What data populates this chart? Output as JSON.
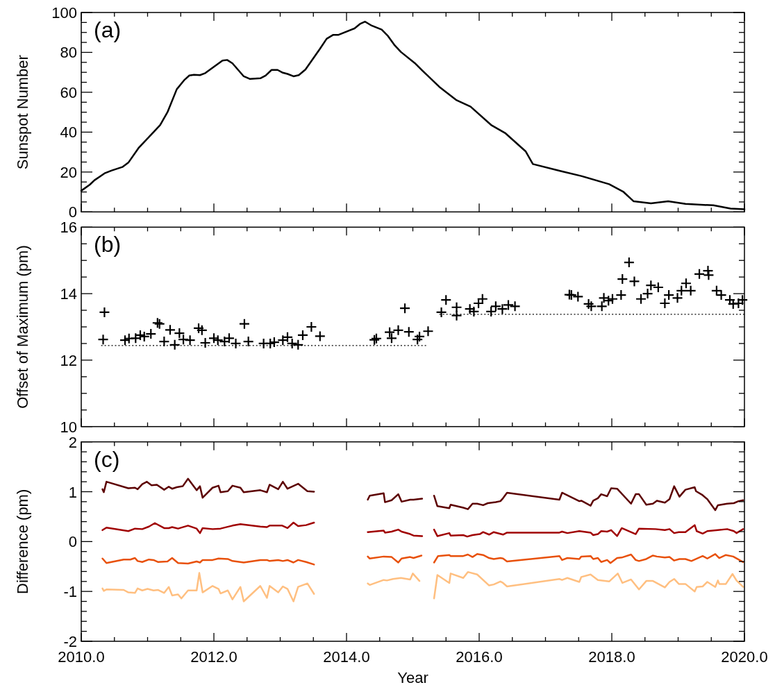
{
  "chart_data": [
    {
      "type": "line",
      "ylabel": "Sunspot Number",
      "annotations": [
        "(a)"
      ],
      "tick_labels": "y",
      "xlim": [
        2010,
        2020
      ],
      "ylim": [
        0,
        100
      ],
      "xticks": [
        {
          "value": 2010
        },
        {
          "value": 2010.5,
          "label": null
        },
        {
          "value": 2011,
          "label": null
        },
        {
          "value": 2011.5,
          "label": null
        },
        {
          "value": 2012
        },
        {
          "value": 2012.5,
          "label": null
        },
        {
          "value": 2013,
          "label": null
        },
        {
          "value": 2013.5,
          "label": null
        },
        {
          "value": 2014
        },
        {
          "value": 2014.5,
          "label": null
        },
        {
          "value": 2015,
          "label": null
        },
        {
          "value": 2015.5,
          "label": null
        },
        {
          "value": 2016
        },
        {
          "value": 2016.5,
          "label": null
        },
        {
          "value": 2017,
          "label": null
        },
        {
          "value": 2017.5,
          "label": null
        },
        {
          "value": 2018
        },
        {
          "value": 2018.5,
          "label": null
        },
        {
          "value": 2019,
          "label": null
        },
        {
          "value": 2019.5,
          "label": null
        },
        {
          "value": 2020
        }
      ],
      "yticks": [
        0,
        {
          "value": 5,
          "label": null
        },
        {
          "value": 10,
          "label": null
        },
        {
          "value": 15,
          "label": null
        },
        20,
        {
          "value": 25,
          "label": null
        },
        {
          "value": 30,
          "label": null
        },
        {
          "value": 35,
          "label": null
        },
        40,
        {
          "value": 45,
          "label": null
        },
        {
          "value": 50,
          "label": null
        },
        {
          "value": 55,
          "label": null
        },
        60,
        {
          "value": 65,
          "label": null
        },
        {
          "value": 70,
          "label": null
        },
        {
          "value": 75,
          "label": null
        },
        80,
        {
          "value": 85,
          "label": null
        },
        {
          "value": 90,
          "label": null
        },
        {
          "value": 95,
          "label": null
        },
        100
      ],
      "series": [
        {
          "color": "#000000",
          "x": [
            2010.0,
            2010.13,
            2010.2,
            2010.36,
            2010.46,
            2010.62,
            2010.71,
            2010.87,
            2011.09,
            2011.19,
            2011.3,
            2011.44,
            2011.55,
            2011.63,
            2011.7,
            2011.79,
            2011.87,
            2012.13,
            2012.2,
            2012.28,
            2012.45,
            2012.54,
            2012.7,
            2012.78,
            2012.87,
            2012.96,
            2013.04,
            2013.11,
            2013.2,
            2013.28,
            2013.38,
            2013.6,
            2013.7,
            2013.8,
            2013.88,
            2014.12,
            2014.21,
            2014.28,
            2014.38,
            2014.53,
            2014.62,
            2014.72,
            2014.82,
            2015.03,
            2015.14,
            2015.4,
            2015.66,
            2015.87,
            2016.18,
            2016.39,
            2016.7,
            2016.81,
            2017.23,
            2017.54,
            2017.96,
            2018.17,
            2018.33,
            2018.59,
            2018.85,
            2019.11,
            2019.53,
            2019.79,
            2020.0
          ],
          "values": [
            10.6,
            13.7,
            15.9,
            19.5,
            20.8,
            22.5,
            24.7,
            32.3,
            40,
            43.6,
            50,
            61.5,
            66,
            68.4,
            68.8,
            68.6,
            69.6,
            75.9,
            76.2,
            74.5,
            68,
            66.7,
            67,
            68.4,
            71.2,
            71.2,
            69.8,
            69.2,
            68,
            68.6,
            71.4,
            81.8,
            86.8,
            88.8,
            88.8,
            92,
            94.4,
            95.4,
            93.4,
            91.4,
            88.4,
            83.8,
            80.2,
            74.6,
            71,
            62.7,
            56,
            52.8,
            43.6,
            39.6,
            30.4,
            24,
            20.5,
            18,
            13.9,
            10.2,
            5.3,
            4.3,
            5.3,
            4,
            3.3,
            1.7,
            1.3
          ]
        }
      ]
    },
    {
      "type": "scatter",
      "ylabel": "Offset of Maximum (pm)",
      "annotations": [
        "(b)"
      ],
      "tick_labels": "y",
      "xlim": [
        2010,
        2020
      ],
      "ylim": [
        10,
        16
      ],
      "xticks": [
        {
          "value": 2010
        },
        {
          "value": 2010.5,
          "label": null
        },
        {
          "value": 2011,
          "label": null
        },
        {
          "value": 2011.5,
          "label": null
        },
        {
          "value": 2012
        },
        {
          "value": 2012.5,
          "label": null
        },
        {
          "value": 2013,
          "label": null
        },
        {
          "value": 2013.5,
          "label": null
        },
        {
          "value": 2014
        },
        {
          "value": 2014.5,
          "label": null
        },
        {
          "value": 2015,
          "label": null
        },
        {
          "value": 2015.5,
          "label": null
        },
        {
          "value": 2016
        },
        {
          "value": 2016.5,
          "label": null
        },
        {
          "value": 2017,
          "label": null
        },
        {
          "value": 2017.5,
          "label": null
        },
        {
          "value": 2018
        },
        {
          "value": 2018.5,
          "label": null
        },
        {
          "value": 2019,
          "label": null
        },
        {
          "value": 2019.5,
          "label": null
        },
        {
          "value": 2020
        }
      ],
      "yticks": [
        10,
        {
          "value": 10.5,
          "label": null
        },
        {
          "value": 11,
          "label": null
        },
        {
          "value": 11.5,
          "label": null
        },
        12,
        {
          "value": 12.5,
          "label": null
        },
        {
          "value": 13,
          "label": null
        },
        {
          "value": 13.5,
          "label": null
        },
        14,
        {
          "value": 14.5,
          "label": null
        },
        {
          "value": 15,
          "label": null
        },
        {
          "value": 15.5,
          "label": null
        },
        16
      ],
      "series": [
        {
          "color": "#000000",
          "marker": "cross",
          "x": [
            2010.33,
            2010.35,
            2010.66,
            2010.72,
            2010.82,
            2010.89,
            2010.95,
            2011.05,
            2011.15,
            2011.18,
            2011.25,
            2011.34,
            2011.41,
            2011.48,
            2011.54,
            2011.64,
            2011.77,
            2011.82,
            2011.87,
            2012.0,
            2012.06,
            2012.16,
            2012.23,
            2012.33,
            2012.46,
            2012.52,
            2012.75,
            2012.85,
            2012.91,
            2013.04,
            2013.11,
            2013.18,
            2013.27,
            2013.34,
            2013.47,
            2013.6,
            2014.42,
            2014.45,
            2014.65,
            2014.68,
            2014.78,
            2014.88,
            2014.94,
            2015.07,
            2015.1,
            2015.23,
            2015.43,
            2015.5,
            2015.66,
            2015.66,
            2015.86,
            2015.92,
            2015.99,
            2016.05,
            2016.18,
            2016.25,
            2016.35,
            2016.44,
            2016.54,
            2017.36,
            2017.39,
            2017.49,
            2017.65,
            2017.69,
            2017.85,
            2017.88,
            2017.95,
            2018.01,
            2018.14,
            2018.16,
            2018.26,
            2018.34,
            2018.44,
            2018.54,
            2018.59,
            2018.7,
            2018.8,
            2018.86,
            2018.99,
            2019.05,
            2019.12,
            2019.19,
            2019.32,
            2019.45,
            2019.46,
            2019.58,
            2019.65,
            2019.78,
            2019.83,
            2019.91,
            2019.97
          ],
          "values": [
            12.62,
            13.44,
            12.6,
            12.65,
            12.66,
            12.75,
            12.71,
            12.79,
            13.12,
            13.09,
            12.56,
            12.91,
            12.46,
            12.81,
            12.62,
            12.6,
            12.96,
            12.9,
            12.52,
            12.66,
            12.6,
            12.56,
            12.66,
            12.5,
            13.09,
            12.56,
            12.5,
            12.5,
            12.54,
            12.6,
            12.69,
            12.5,
            12.46,
            12.75,
            13.0,
            12.72,
            12.61,
            12.65,
            12.84,
            12.66,
            12.9,
            13.56,
            12.85,
            12.62,
            12.71,
            12.87,
            13.44,
            13.81,
            13.59,
            13.34,
            13.54,
            13.46,
            13.71,
            13.84,
            13.46,
            13.62,
            13.54,
            13.66,
            13.62,
            13.97,
            13.96,
            13.91,
            13.69,
            13.62,
            13.62,
            13.87,
            13.79,
            13.84,
            13.96,
            14.44,
            14.94,
            14.37,
            13.84,
            14.0,
            14.25,
            14.19,
            13.71,
            13.96,
            13.87,
            14.09,
            14.31,
            14.09,
            14.59,
            14.69,
            14.56,
            14.09,
            13.96,
            13.81,
            13.69,
            13.71,
            13.81
          ]
        },
        {
          "type": "line",
          "line_style": "dotted",
          "color": "#000000",
          "x": [
            2010.3,
            2015.2
          ],
          "values": [
            12.44,
            12.44
          ]
        },
        {
          "type": "line",
          "line_style": "dotted",
          "color": "#000000",
          "x": [
            2015.4,
            2020.0
          ],
          "values": [
            13.38,
            13.38
          ]
        }
      ]
    },
    {
      "type": "line",
      "xlabel": "Year",
      "ylabel": "Difference (pm)",
      "annotations": [
        "(c)"
      ],
      "xlim": [
        2010,
        2020
      ],
      "ylim": [
        -2,
        2
      ],
      "xticks": [
        {
          "value": 2010,
          "label": "2010.0"
        },
        {
          "value": 2010.5,
          "label": null
        },
        {
          "value": 2011,
          "label": null
        },
        {
          "value": 2011.5,
          "label": null
        },
        {
          "value": 2012,
          "label": "2012.0"
        },
        {
          "value": 2012.5,
          "label": null
        },
        {
          "value": 2013,
          "label": null
        },
        {
          "value": 2013.5,
          "label": null
        },
        {
          "value": 2014,
          "label": "2014.0"
        },
        {
          "value": 2014.5,
          "label": null
        },
        {
          "value": 2015,
          "label": null
        },
        {
          "value": 2015.5,
          "label": null
        },
        {
          "value": 2016,
          "label": "2016.0"
        },
        {
          "value": 2016.5,
          "label": null
        },
        {
          "value": 2017,
          "label": null
        },
        {
          "value": 2017.5,
          "label": null
        },
        {
          "value": 2018,
          "label": "2018.0"
        },
        {
          "value": 2018.5,
          "label": null
        },
        {
          "value": 2019,
          "label": null
        },
        {
          "value": 2019.5,
          "label": null
        },
        {
          "value": 2020,
          "label": "2020.0"
        }
      ],
      "yticks": [
        -2,
        {
          "value": -1.8,
          "label": null
        },
        {
          "value": -1.6,
          "label": null
        },
        {
          "value": -1.4,
          "label": null
        },
        {
          "value": -1.2,
          "label": null
        },
        -1,
        {
          "value": -0.8,
          "label": null
        },
        {
          "value": -0.6,
          "label": null
        },
        {
          "value": -0.4,
          "label": null
        },
        {
          "value": -0.2,
          "label": null
        },
        0,
        {
          "value": 0.2,
          "label": null
        },
        {
          "value": 0.4,
          "label": null
        },
        {
          "value": 0.6,
          "label": null
        },
        {
          "value": 0.8,
          "label": null
        },
        1,
        {
          "value": 1.2,
          "label": null
        },
        {
          "value": 1.4,
          "label": null
        },
        {
          "value": 1.6,
          "label": null
        },
        {
          "value": 1.8,
          "label": null
        },
        2
      ],
      "series": [
        {
          "color": "#5c0000",
          "x": [
            2010.32,
            2010.34,
            2010.38,
            2010.71,
            2010.81,
            2010.85,
            2010.92,
            2010.99,
            2011.06,
            2011.14,
            2011.25,
            2011.32,
            2011.37,
            2011.44,
            2011.53,
            2011.61,
            2011.74,
            2011.79,
            2011.83,
            2011.98,
            2012.07,
            2012.1,
            2012.21,
            2012.28,
            2012.4,
            2012.45,
            2012.7,
            2012.8,
            2012.84,
            2012.97,
            2013.04,
            2013.11,
            2013.27,
            2013.41,
            2013.51,
            null,
            2014.32,
            2014.35,
            2014.56,
            2014.58,
            2014.68,
            2014.78,
            2014.83,
            2014.96,
            2015.01,
            2015.14,
            null,
            2015.32,
            2015.37,
            2015.55,
            2015.57,
            2015.76,
            2015.83,
            2015.9,
            2015.97,
            2016.06,
            2016.13,
            2016.25,
            2016.32,
            2016.36,
            2016.42,
            2017.21,
            2017.25,
            2017.51,
            2017.54,
            2017.68,
            2017.72,
            2017.79,
            2017.84,
            2017.93,
            2017.99,
            2018.08,
            2018.29,
            2018.36,
            2018.41,
            2018.52,
            2018.62,
            2018.68,
            2018.8,
            2018.87,
            2018.94,
            2019.02,
            2019.11,
            2019.25,
            2019.27,
            2019.36,
            2019.44,
            2019.56,
            2019.6,
            2019.74,
            2019.84,
            2019.91,
            2019.98
          ],
          "values": [
            1.05,
            0.99,
            1.2,
            1.07,
            1.08,
            1.05,
            1.15,
            1.2,
            1.13,
            1.14,
            1.04,
            1.1,
            1.06,
            1.09,
            1.11,
            1.26,
            1.03,
            1.11,
            0.88,
            1.08,
            1.12,
            0.99,
            1.01,
            1.12,
            1.08,
            0.99,
            1.03,
            0.99,
            1.14,
            1.05,
            1.2,
            1.06,
            1.16,
            1.01,
            1.0,
            null,
            0.84,
            0.92,
            0.97,
            0.79,
            0.83,
            0.95,
            0.8,
            0.84,
            0.84,
            0.86,
            null,
            0.92,
            0.71,
            0.67,
            0.74,
            0.68,
            0.65,
            0.76,
            0.76,
            0.73,
            0.77,
            0.79,
            0.81,
            0.87,
            0.98,
            0.84,
            0.98,
            0.81,
            0.82,
            0.72,
            0.82,
            0.87,
            0.95,
            0.91,
            1.07,
            1.06,
            0.76,
            0.95,
            0.95,
            0.74,
            0.76,
            0.82,
            0.78,
            0.85,
            1.11,
            0.9,
            1.04,
            1.09,
            1.01,
            0.94,
            0.85,
            0.63,
            0.73,
            0.76,
            0.77,
            0.81,
            0.83
          ]
        },
        {
          "color": "#a00000",
          "x": [
            2010.32,
            2010.38,
            2010.71,
            2010.81,
            2010.92,
            2011.02,
            2011.11,
            2011.25,
            2011.32,
            2011.37,
            2011.46,
            2011.61,
            2011.74,
            2011.79,
            2011.83,
            2011.98,
            2012.1,
            2012.28,
            2012.4,
            2012.7,
            2012.8,
            2012.84,
            2013.03,
            2013.11,
            2013.2,
            2013.27,
            2013.39,
            2013.51,
            null,
            2014.32,
            2014.56,
            2014.58,
            2014.68,
            2014.78,
            2014.83,
            2014.96,
            2015.01,
            2015.14,
            null,
            2015.32,
            2015.37,
            2015.55,
            2015.57,
            2015.76,
            2015.82,
            2015.9,
            2016.01,
            2016.06,
            2016.15,
            2016.22,
            2016.36,
            2016.42,
            2017.21,
            2017.25,
            2017.33,
            2017.51,
            2017.68,
            2017.72,
            2017.79,
            2017.84,
            2017.93,
            2017.99,
            2018.08,
            2018.15,
            2018.36,
            2018.41,
            2018.66,
            2018.8,
            2018.87,
            2018.94,
            2019.01,
            2019.11,
            2019.25,
            2019.28,
            2019.37,
            2019.44,
            2019.6,
            2019.74,
            2019.84,
            2019.88,
            2019.98
          ],
          "values": [
            0.23,
            0.28,
            0.21,
            0.26,
            0.25,
            0.3,
            0.37,
            0.27,
            0.27,
            0.29,
            0.26,
            0.32,
            0.26,
            0.17,
            0.27,
            0.25,
            0.26,
            0.32,
            0.35,
            0.3,
            0.29,
            0.32,
            0.32,
            0.27,
            0.38,
            0.31,
            0.33,
            0.38,
            null,
            0.19,
            0.22,
            0.18,
            0.2,
            0.24,
            0.2,
            0.15,
            0.12,
            0.11,
            null,
            0.24,
            0.11,
            0.17,
            0.12,
            0.13,
            0.1,
            0.13,
            0.15,
            0.19,
            0.14,
            0.19,
            0.14,
            0.18,
            0.18,
            0.2,
            0.17,
            0.21,
            0.18,
            0.13,
            0.15,
            0.21,
            0.2,
            0.23,
            0.11,
            0.27,
            0.15,
            0.26,
            0.25,
            0.23,
            0.25,
            0.17,
            0.19,
            0.19,
            0.33,
            0.21,
            0.16,
            0.21,
            0.23,
            0.25,
            0.21,
            0.17,
            0.25
          ]
        },
        {
          "color": "#e8500a",
          "x": [
            2010.32,
            2010.38,
            2010.64,
            2010.74,
            2010.81,
            2010.85,
            2010.92,
            2011.02,
            2011.09,
            2011.16,
            2011.3,
            2011.37,
            2011.46,
            2011.61,
            2011.74,
            2011.79,
            2011.83,
            2011.98,
            2012.07,
            2012.21,
            2012.28,
            2012.45,
            2012.7,
            2012.8,
            2012.84,
            2012.97,
            2013.04,
            2013.11,
            2013.2,
            2013.27,
            2013.39,
            2013.51,
            null,
            2014.32,
            2014.35,
            2014.56,
            2014.68,
            2014.78,
            2014.83,
            2014.96,
            2015.01,
            2015.13,
            null,
            2015.32,
            2015.38,
            2015.55,
            2015.57,
            2015.76,
            2015.83,
            2015.9,
            2015.97,
            2016.06,
            2016.15,
            2016.22,
            2016.32,
            2016.36,
            2016.42,
            2017.21,
            2017.25,
            2017.33,
            2017.51,
            2017.54,
            2017.68,
            2017.72,
            2017.79,
            2017.84,
            2017.93,
            2017.98,
            2018.08,
            2018.15,
            2018.29,
            2018.36,
            2018.41,
            2018.52,
            2018.62,
            2018.68,
            2018.8,
            2018.87,
            2018.94,
            2019.02,
            2019.11,
            2019.2,
            2019.27,
            2019.37,
            2019.44,
            2019.56,
            2019.62,
            2019.72,
            2019.83,
            2019.98
          ],
          "values": [
            -0.34,
            -0.43,
            -0.36,
            -0.36,
            -0.33,
            -0.39,
            -0.41,
            -0.36,
            -0.37,
            -0.41,
            -0.4,
            -0.33,
            -0.43,
            -0.44,
            -0.4,
            -0.42,
            -0.37,
            -0.37,
            -0.34,
            -0.35,
            -0.39,
            -0.42,
            -0.37,
            -0.37,
            -0.39,
            -0.37,
            -0.39,
            -0.37,
            -0.42,
            -0.37,
            -0.41,
            -0.46,
            null,
            -0.3,
            -0.34,
            -0.3,
            -0.31,
            -0.42,
            -0.34,
            -0.31,
            -0.33,
            -0.28,
            null,
            -0.42,
            -0.29,
            -0.27,
            -0.29,
            -0.29,
            -0.26,
            -0.31,
            -0.25,
            -0.27,
            -0.33,
            -0.35,
            -0.33,
            -0.34,
            -0.4,
            -0.29,
            -0.37,
            -0.33,
            -0.35,
            -0.3,
            -0.29,
            -0.35,
            -0.33,
            -0.41,
            -0.37,
            -0.43,
            -0.33,
            -0.32,
            -0.26,
            -0.37,
            -0.39,
            -0.35,
            -0.28,
            -0.3,
            -0.32,
            -0.31,
            -0.38,
            -0.35,
            -0.35,
            -0.39,
            -0.35,
            -0.29,
            -0.34,
            -0.25,
            -0.33,
            -0.27,
            -0.3,
            -0.41
          ]
        },
        {
          "color": "#ffbf80",
          "x": [
            2010.32,
            2010.34,
            2010.38,
            2010.64,
            2010.71,
            2010.81,
            2010.85,
            2010.92,
            2011.0,
            2011.09,
            2011.16,
            2011.25,
            2011.32,
            2011.37,
            2011.46,
            2011.51,
            2011.61,
            2011.74,
            2011.78,
            2011.83,
            2011.98,
            2012.07,
            2012.1,
            2012.21,
            2012.28,
            2012.4,
            2012.45,
            2012.7,
            2012.8,
            2012.84,
            2012.97,
            2013.04,
            2013.11,
            2013.2,
            2013.27,
            2013.41,
            2013.51,
            null,
            2014.32,
            2014.35,
            2014.56,
            2014.61,
            2014.7,
            2014.82,
            2014.96,
            2015.0,
            2015.1,
            null,
            2015.32,
            2015.37,
            2015.55,
            2015.57,
            2015.76,
            2015.83,
            2015.97,
            2016.15,
            2016.22,
            2016.32,
            2016.36,
            2016.42,
            2017.21,
            2017.25,
            2017.33,
            2017.51,
            2017.54,
            2017.68,
            2017.79,
            2017.96,
            2018.09,
            2018.16,
            2018.29,
            2018.41,
            2018.52,
            2018.62,
            2018.8,
            2018.87,
            2018.94,
            2019.01,
            2019.11,
            2019.25,
            2019.28,
            2019.37,
            2019.44,
            2019.56,
            2019.6,
            2019.62,
            2019.72,
            2019.82,
            2019.88,
            2019.98
          ],
          "values": [
            -0.94,
            -0.99,
            -0.96,
            -0.97,
            -1.02,
            -1.03,
            -0.94,
            -0.98,
            -0.95,
            -0.98,
            -0.97,
            -1.03,
            -0.91,
            -1.08,
            -1.06,
            -1.14,
            -0.98,
            -0.98,
            -0.63,
            -1.02,
            -0.89,
            -0.95,
            -1.04,
            -0.98,
            -1.16,
            -0.91,
            -1.2,
            -0.89,
            -1.13,
            -0.89,
            -1.02,
            -0.9,
            -0.95,
            -1.2,
            -0.91,
            -0.84,
            -1.05,
            null,
            -0.84,
            -0.87,
            -0.77,
            -0.78,
            -0.75,
            -0.73,
            -0.76,
            -0.64,
            -0.79,
            null,
            -1.14,
            -0.67,
            -0.83,
            -0.64,
            -0.73,
            -0.61,
            -0.66,
            -0.88,
            -0.86,
            -0.8,
            -0.83,
            -0.9,
            -0.75,
            -0.77,
            -0.73,
            -0.81,
            -0.71,
            -0.66,
            -0.77,
            -0.8,
            -0.64,
            -0.83,
            -0.76,
            -0.96,
            -0.79,
            -0.79,
            -0.92,
            -0.81,
            -0.75,
            -0.85,
            -0.85,
            -1.0,
            -0.91,
            -0.9,
            -0.81,
            -0.91,
            -0.78,
            -0.85,
            -0.85,
            -0.65,
            -0.78,
            -0.91
          ]
        }
      ]
    }
  ]
}
